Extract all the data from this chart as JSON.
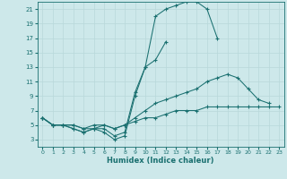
{
  "xlabel": "Humidex (Indice chaleur)",
  "bg_color": "#cde8ea",
  "grid_color": "#b8d8da",
  "line_color": "#1a7070",
  "xlim": [
    -0.5,
    23.5
  ],
  "ylim": [
    2,
    22
  ],
  "yticks": [
    3,
    5,
    7,
    9,
    11,
    13,
    15,
    17,
    19,
    21
  ],
  "xticks": [
    0,
    1,
    2,
    3,
    4,
    5,
    6,
    7,
    8,
    9,
    10,
    11,
    12,
    13,
    14,
    15,
    16,
    17,
    18,
    19,
    20,
    21,
    22,
    23
  ],
  "series": [
    {
      "x": [
        0,
        1,
        2,
        3,
        4,
        5,
        6,
        7,
        8,
        9,
        10,
        11,
        12,
        13,
        14,
        15,
        16,
        17,
        18,
        19,
        20,
        21,
        22,
        23
      ],
      "y": [
        6,
        5,
        5,
        4.5,
        4,
        4.5,
        4,
        3,
        3.5,
        9,
        13,
        20,
        21,
        21.5,
        22,
        22,
        21,
        17,
        null,
        null,
        null,
        null,
        null,
        null
      ]
    },
    {
      "x": [
        0,
        1,
        2,
        3,
        4,
        5,
        6,
        7,
        8,
        9,
        10,
        11,
        12,
        13,
        14,
        15,
        16,
        17,
        18,
        19,
        20,
        21,
        22,
        23
      ],
      "y": [
        6,
        5,
        5,
        4.5,
        4,
        4.5,
        4.5,
        3.5,
        4,
        9.5,
        13,
        14,
        16.5,
        null,
        null,
        null,
        null,
        null,
        null,
        null,
        null,
        null,
        null,
        null
      ]
    },
    {
      "x": [
        0,
        1,
        2,
        3,
        4,
        5,
        6,
        7,
        8,
        9,
        10,
        11,
        12,
        13,
        14,
        15,
        16,
        17,
        18,
        19,
        20,
        21,
        22,
        23
      ],
      "y": [
        6,
        5,
        5,
        5,
        4.5,
        4.5,
        5,
        4.5,
        5,
        6,
        7,
        8,
        8.5,
        9,
        9.5,
        10,
        11,
        11.5,
        12,
        11.5,
        10,
        8.5,
        8,
        null
      ]
    },
    {
      "x": [
        0,
        1,
        2,
        3,
        4,
        5,
        6,
        7,
        8,
        9,
        10,
        11,
        12,
        13,
        14,
        15,
        16,
        17,
        18,
        19,
        20,
        21,
        22,
        23
      ],
      "y": [
        6,
        5,
        5,
        5,
        4.5,
        5,
        5,
        4.5,
        5,
        5.5,
        6,
        6,
        6.5,
        7,
        7,
        7,
        7.5,
        7.5,
        7.5,
        7.5,
        7.5,
        7.5,
        7.5,
        7.5
      ]
    }
  ]
}
